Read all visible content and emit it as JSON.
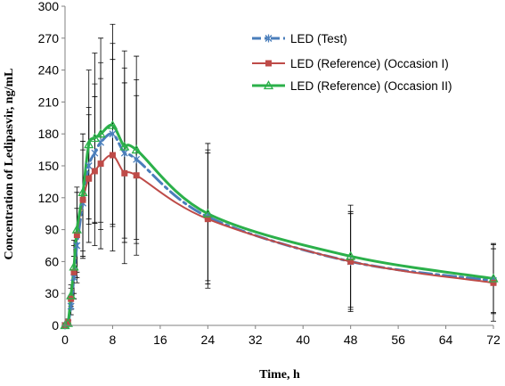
{
  "chart_data": {
    "type": "line",
    "title": "",
    "xlabel": "Time, h",
    "ylabel": "Concentration of Ledipasvir, ng/mL",
    "xlim": [
      0,
      72
    ],
    "ylim": [
      0,
      300
    ],
    "xticks": [
      0,
      8,
      16,
      24,
      32,
      40,
      48,
      56,
      64,
      72
    ],
    "yticks": [
      0,
      30,
      60,
      90,
      120,
      150,
      180,
      210,
      240,
      270,
      300
    ],
    "grid": false,
    "legend_position": "top-right",
    "series": [
      {
        "name": "LED (Test)",
        "color": "#4a7ebb",
        "marker": "star",
        "line_style": "dash-dot",
        "x": [
          0,
          0.5,
          1,
          1.5,
          2,
          3,
          4,
          5,
          6,
          8,
          10,
          12,
          24,
          48,
          72
        ],
        "y": [
          0,
          2,
          18,
          45,
          75,
          115,
          150,
          162,
          172,
          180,
          162,
          156,
          102,
          60,
          42
        ],
        "error": [
          0,
          2,
          8,
          20,
          35,
          50,
          55,
          65,
          75,
          85,
          80,
          75,
          60,
          45,
          30
        ]
      },
      {
        "name": "LED (Reference) (Occasion I)",
        "color": "#be4b48",
        "marker": "square",
        "line_style": "solid",
        "x": [
          0,
          0.5,
          1,
          1.5,
          2,
          3,
          4,
          5,
          6,
          8,
          10,
          12,
          24,
          48,
          72
        ],
        "y": [
          0,
          3,
          25,
          50,
          85,
          118,
          138,
          145,
          152,
          160,
          143,
          141,
          100,
          60,
          40
        ],
        "error": [
          0,
          3,
          10,
          25,
          40,
          55,
          60,
          70,
          80,
          90,
          85,
          75,
          65,
          47,
          36
        ]
      },
      {
        "name": "LED (Reference) (Occasion II)",
        "color": "#2bb04a",
        "marker": "triangle",
        "line_style": "solid",
        "x": [
          0,
          0.5,
          1,
          1.5,
          2,
          3,
          4,
          5,
          6,
          8,
          10,
          12,
          24,
          48,
          72
        ],
        "y": [
          0,
          2,
          28,
          55,
          90,
          125,
          170,
          176,
          180,
          188,
          168,
          165,
          105,
          65,
          44
        ],
        "error": [
          0,
          2,
          10,
          25,
          40,
          55,
          70,
          80,
          90,
          95,
          90,
          88,
          66,
          48,
          33
        ]
      }
    ]
  }
}
